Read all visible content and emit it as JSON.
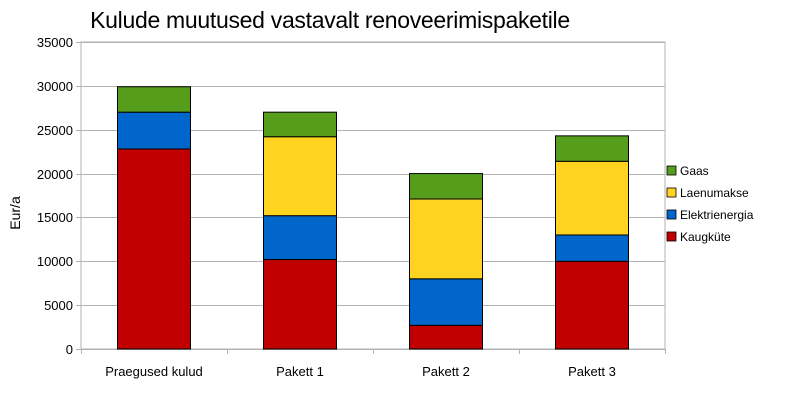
{
  "chart_data": {
    "type": "bar",
    "stacked": true,
    "title": "Kulude muutused vastavalt renoveerimispaketile",
    "xlabel": "",
    "ylabel": "Eur/a",
    "ylim": [
      0,
      35000
    ],
    "yticks": [
      0,
      5000,
      10000,
      15000,
      20000,
      25000,
      30000,
      35000
    ],
    "grid": true,
    "legend_position": "right",
    "categories": [
      "Praegused kulud",
      "Pakett 1",
      "Pakett 2",
      "Pakett 3"
    ],
    "series": [
      {
        "name": "Kaugküte",
        "color": "#c00000",
        "values": [
          22800,
          10200,
          2700,
          10000
        ]
      },
      {
        "name": "Elektrienergia",
        "color": "#0066cc",
        "values": [
          4200,
          5000,
          5300,
          3000
        ]
      },
      {
        "name": "Laenumakse",
        "color": "#ffd320",
        "values": [
          0,
          9000,
          9100,
          8400
        ]
      },
      {
        "name": "Gaas",
        "color": "#579d1c",
        "values": [
          2900,
          2800,
          2900,
          2900
        ]
      }
    ]
  }
}
